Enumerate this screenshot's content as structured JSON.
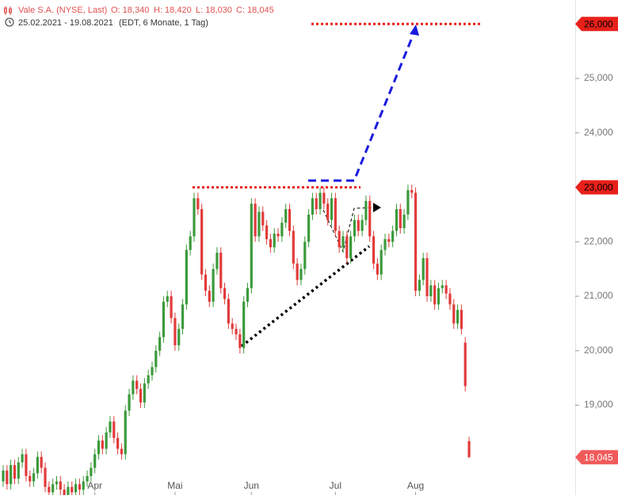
{
  "chart_data": {
    "type": "candlestick",
    "title": "Vale S.A. (NYSE, Last)",
    "ohlc_labels": [
      "O: 18,340",
      "H: 18,420",
      "L: 18,030",
      "C: 18,045"
    ],
    "subtitle": "25.02.2021 - 19.08.2021",
    "subtitle_note": "(EDT, 6 Monate, 1 Tag)",
    "categories": [
      null,
      null,
      null,
      null,
      null,
      null,
      null,
      null,
      null,
      null,
      null,
      null,
      null,
      null,
      null,
      null,
      null,
      null,
      null,
      null,
      null,
      null,
      null,
      null,
      "Apr",
      null,
      null,
      null,
      null,
      null,
      null,
      null,
      null,
      null,
      null,
      null,
      null,
      null,
      null,
      null,
      null,
      null,
      null,
      null,
      null,
      "Mai",
      null,
      null,
      null,
      null,
      null,
      null,
      null,
      null,
      null,
      null,
      null,
      null,
      null,
      null,
      null,
      null,
      null,
      null,
      null,
      "Jun",
      null,
      null,
      null,
      null,
      null,
      null,
      null,
      null,
      null,
      null,
      null,
      null,
      null,
      null,
      null,
      null,
      null,
      null,
      null,
      null,
      null,
      "Jul",
      null,
      null,
      null,
      null,
      null,
      null,
      null,
      null,
      null,
      null,
      null,
      null,
      null,
      null,
      null,
      null,
      null,
      null,
      null,
      null,
      "Aug",
      null,
      null,
      null,
      null,
      null,
      null,
      null,
      null,
      null,
      null,
      null,
      null,
      null,
      null
    ],
    "open": [
      17600,
      17800,
      17550,
      17900,
      17650,
      17950,
      18100,
      17700,
      17600,
      17750,
      18050,
      17850,
      17500,
      17400,
      17550,
      17600,
      17450,
      17350,
      17500,
      17400,
      17550,
      17450,
      17600,
      17700,
      17850,
      18100,
      18350,
      18200,
      18500,
      18700,
      18400,
      18200,
      18100,
      18900,
      19200,
      19450,
      19300,
      19050,
      19400,
      19550,
      19700,
      20000,
      20250,
      20900,
      21000,
      20600,
      20100,
      20400,
      20850,
      21850,
      22100,
      22800,
      22600,
      21400,
      21100,
      20900,
      21500,
      21800,
      21150,
      20950,
      20500,
      20400,
      20300,
      20050,
      20900,
      21150,
      22700,
      22100,
      22550,
      22300,
      22050,
      21900,
      22150,
      22100,
      22350,
      22600,
      22200,
      21600,
      21300,
      21500,
      22000,
      22500,
      22800,
      22600,
      22900,
      22700,
      22400,
      22800,
      22200,
      21900,
      22100,
      21700,
      22100,
      22400,
      22200,
      22400,
      22750,
      22100,
      21600,
      21400,
      21850,
      22050,
      22000,
      22200,
      22600,
      22250,
      22500,
      22950,
      22900,
      21100,
      21300,
      21700,
      21000,
      21200,
      20850,
      21150,
      21200,
      21050,
      20850,
      20500,
      20750,
      20150,
      18340
    ],
    "high": [
      17900,
      17900,
      18000,
      18000,
      18050,
      18200,
      18200,
      17800,
      17850,
      18150,
      18150,
      17950,
      17600,
      17650,
      17700,
      17700,
      17550,
      17600,
      17600,
      17650,
      17650,
      17700,
      17800,
      17950,
      18200,
      18450,
      18450,
      18600,
      18800,
      18800,
      18500,
      18300,
      19000,
      19300,
      19550,
      19550,
      19400,
      19500,
      19650,
      19800,
      20100,
      20350,
      21000,
      21100,
      21100,
      20700,
      20500,
      20950,
      21950,
      22200,
      22900,
      22900,
      22700,
      21500,
      21200,
      21600,
      21900,
      21900,
      21250,
      21050,
      20600,
      20500,
      20400,
      21000,
      21250,
      22800,
      22800,
      22650,
      22650,
      22400,
      22150,
      22250,
      22250,
      22450,
      22700,
      22700,
      22300,
      21700,
      21600,
      22100,
      22600,
      22900,
      22900,
      23000,
      23000,
      22800,
      22900,
      22900,
      22300,
      22200,
      22200,
      22200,
      22500,
      22500,
      22500,
      22850,
      22850,
      22200,
      21700,
      21950,
      22150,
      22150,
      22300,
      22700,
      22700,
      22600,
      23050,
      23050,
      23000,
      21400,
      21800,
      21800,
      21300,
      21300,
      21250,
      21300,
      21300,
      21150,
      20950,
      20850,
      20850,
      20250,
      18420
    ],
    "low": [
      17500,
      17450,
      17450,
      17550,
      17550,
      17850,
      17600,
      17500,
      17500,
      17650,
      17750,
      17400,
      17300,
      17300,
      17450,
      17350,
      17250,
      17250,
      17300,
      17300,
      17350,
      17350,
      17500,
      17600,
      17750,
      18000,
      18100,
      18100,
      18400,
      18300,
      18100,
      18000,
      18000,
      18800,
      19100,
      19200,
      18950,
      18950,
      19300,
      19450,
      19600,
      19900,
      20150,
      20800,
      20500,
      20000,
      20000,
      20300,
      20750,
      21750,
      22000,
      22500,
      21300,
      21000,
      20800,
      20800,
      21400,
      21050,
      20850,
      20400,
      20300,
      20200,
      19950,
      19950,
      20800,
      21050,
      22000,
      22000,
      22200,
      21950,
      21800,
      21800,
      22000,
      22000,
      22250,
      22100,
      21500,
      21200,
      21200,
      21400,
      21900,
      22400,
      22500,
      22500,
      22600,
      22300,
      22300,
      22100,
      21800,
      21800,
      21600,
      21600,
      22000,
      22100,
      22100,
      22300,
      22000,
      21500,
      21300,
      21300,
      21750,
      21900,
      21900,
      22100,
      22150,
      22150,
      22400,
      22800,
      21000,
      21000,
      21200,
      20900,
      20900,
      20750,
      20750,
      21050,
      20950,
      20750,
      20400,
      20400,
      20300,
      19250,
      18030
    ],
    "close": [
      17800,
      17550,
      17900,
      17650,
      17950,
      18100,
      17700,
      17600,
      17750,
      18050,
      17850,
      17500,
      17400,
      17550,
      17600,
      17450,
      17350,
      17500,
      17400,
      17550,
      17450,
      17600,
      17700,
      17850,
      18100,
      18350,
      18200,
      18500,
      18700,
      18400,
      18200,
      18100,
      18900,
      19200,
      19450,
      19300,
      19050,
      19400,
      19550,
      19700,
      20000,
      20250,
      20900,
      21000,
      20600,
      20100,
      20400,
      20850,
      21850,
      22100,
      22800,
      22600,
      21400,
      21100,
      20900,
      21500,
      21800,
      21150,
      20950,
      20500,
      20400,
      20300,
      20050,
      20900,
      21150,
      22700,
      22100,
      22550,
      22300,
      22050,
      21900,
      22150,
      22100,
      22350,
      22600,
      22200,
      21600,
      21300,
      21500,
      22000,
      22500,
      22800,
      22600,
      22900,
      22700,
      22400,
      22800,
      22200,
      21900,
      22100,
      21700,
      22100,
      22400,
      22200,
      22400,
      22750,
      22100,
      21600,
      21400,
      21850,
      22050,
      22000,
      22200,
      22600,
      22250,
      22500,
      22950,
      22900,
      21100,
      21300,
      21700,
      21000,
      21200,
      20850,
      21150,
      21200,
      21050,
      20850,
      20500,
      20750,
      20400,
      19350,
      18045
    ],
    "up_color": "#3c9a3c",
    "down_color": "#e23b3b",
    "ylim": [
      17350,
      26440
    ],
    "yticks": [
      {
        "value": 19000,
        "label": "19,000"
      },
      {
        "value": 20000,
        "label": "20,000"
      },
      {
        "value": 21000,
        "label": "21,000"
      },
      {
        "value": 22000,
        "label": "22,000"
      },
      {
        "value": 24000,
        "label": "24,000"
      },
      {
        "value": 25000,
        "label": "25,000"
      }
    ],
    "levels": [
      {
        "value": 26000,
        "label": "26,000"
      },
      {
        "value": 23000,
        "label": "23,000"
      }
    ],
    "level_color": "#e8201a",
    "last_price": {
      "value": 18045,
      "label": "18,045"
    },
    "last_color": "#f05a5a"
  }
}
